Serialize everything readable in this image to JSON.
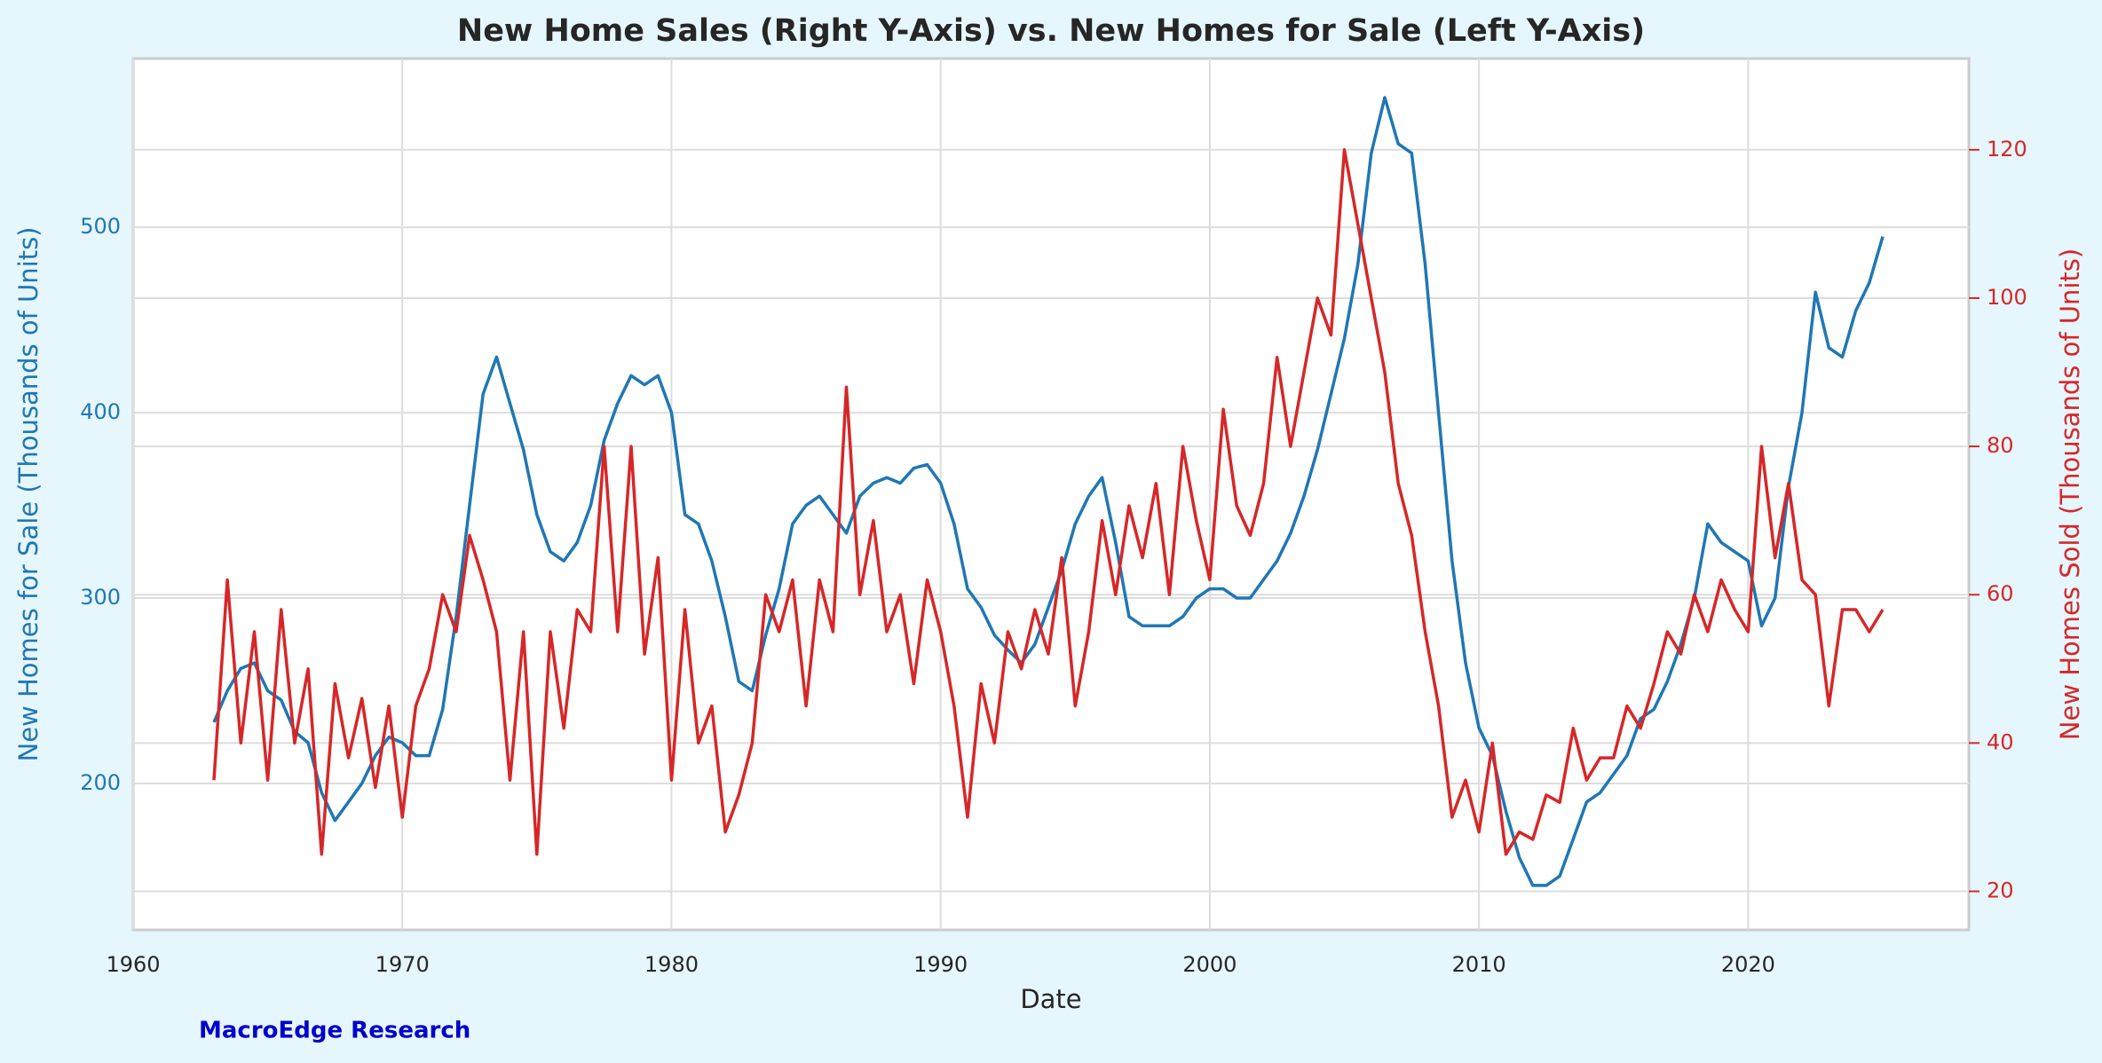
{
  "chart_data": {
    "type": "line",
    "title": "New Home Sales (Right Y-Axis) vs. New Homes for Sale (Left Y-Axis)",
    "xlabel": "Date",
    "ylabel": "New Homes for Sale (Thousands of Units)",
    "y2label": "New Homes Sold (Thousands of Units)",
    "annotation": "MacroEdge Research",
    "grid": true,
    "xlim": [
      1960,
      2028.2
    ],
    "xticks": [
      1960,
      1970,
      1980,
      1990,
      2000,
      2010,
      2020
    ],
    "ylim": [
      121,
      591
    ],
    "yticks": [
      200,
      300,
      400,
      500
    ],
    "y2lim": [
      14.8,
      132.3
    ],
    "y2ticks": [
      20,
      40,
      60,
      80,
      100,
      120
    ],
    "x": [
      1963,
      1963.5,
      1964,
      1964.5,
      1965,
      1965.5,
      1966,
      1966.5,
      1967,
      1967.5,
      1968,
      1968.5,
      1969,
      1969.5,
      1970,
      1970.5,
      1971,
      1971.5,
      1972,
      1972.5,
      1973,
      1973.5,
      1974,
      1974.5,
      1975,
      1975.5,
      1976,
      1976.5,
      1977,
      1977.5,
      1978,
      1978.5,
      1979,
      1979.5,
      1980,
      1980.5,
      1981,
      1981.5,
      1982,
      1982.5,
      1983,
      1983.5,
      1984,
      1984.5,
      1985,
      1985.5,
      1986,
      1986.5,
      1987,
      1987.5,
      1988,
      1988.5,
      1989,
      1989.5,
      1990,
      1990.5,
      1991,
      1991.5,
      1992,
      1992.5,
      1993,
      1993.5,
      1994,
      1994.5,
      1995,
      1995.5,
      1996,
      1996.5,
      1997,
      1997.5,
      1998,
      1998.5,
      1999,
      1999.5,
      2000,
      2000.5,
      2001,
      2001.5,
      2002,
      2002.5,
      2003,
      2003.5,
      2004,
      2004.5,
      2005,
      2005.5,
      2006,
      2006.5,
      2007,
      2007.5,
      2008,
      2008.5,
      2009,
      2009.5,
      2010,
      2010.5,
      2011,
      2011.5,
      2012,
      2012.5,
      2013,
      2013.5,
      2014,
      2014.5,
      2015,
      2015.5,
      2016,
      2016.5,
      2017,
      2017.5,
      2018,
      2018.5,
      2019,
      2019.5,
      2020,
      2020.5,
      2021,
      2021.5,
      2022,
      2022.5,
      2023,
      2023.5,
      2024,
      2024.5,
      2025
    ],
    "series": [
      {
        "name": "New Homes for Sale",
        "color": "#1f77b4",
        "axis": "y",
        "values": [
          233,
          250,
          262,
          265,
          250,
          245,
          228,
          222,
          195,
          180,
          190,
          200,
          215,
          225,
          222,
          215,
          215,
          240,
          290,
          350,
          410,
          430,
          405,
          380,
          345,
          325,
          320,
          330,
          350,
          385,
          405,
          420,
          415,
          420,
          400,
          345,
          340,
          320,
          290,
          255,
          250,
          280,
          305,
          340,
          350,
          355,
          345,
          335,
          355,
          362,
          365,
          362,
          370,
          372,
          362,
          340,
          305,
          295,
          280,
          272,
          265,
          275,
          295,
          315,
          340,
          355,
          365,
          330,
          290,
          285,
          285,
          285,
          290,
          300,
          305,
          305,
          300,
          300,
          310,
          320,
          335,
          355,
          380,
          410,
          440,
          480,
          540,
          570,
          545,
          540,
          480,
          400,
          320,
          265,
          230,
          215,
          185,
          160,
          145,
          145,
          150,
          170,
          190,
          195,
          205,
          215,
          235,
          240,
          255,
          275,
          300,
          340,
          330,
          325,
          320,
          285,
          300,
          360,
          400,
          465,
          435,
          430,
          455,
          470,
          495
        ]
      },
      {
        "name": "New Homes Sold",
        "color": "#d62728",
        "axis": "y2",
        "values": [
          35,
          62,
          40,
          55,
          35,
          58,
          40,
          50,
          25,
          48,
          38,
          46,
          34,
          45,
          30,
          45,
          50,
          60,
          55,
          68,
          62,
          55,
          35,
          55,
          25,
          55,
          42,
          58,
          55,
          80,
          55,
          80,
          52,
          65,
          35,
          58,
          40,
          45,
          28,
          33,
          40,
          60,
          55,
          62,
          45,
          62,
          55,
          88,
          60,
          70,
          55,
          60,
          48,
          62,
          55,
          45,
          30,
          48,
          40,
          55,
          50,
          58,
          52,
          65,
          45,
          55,
          70,
          60,
          72,
          65,
          75,
          60,
          80,
          70,
          62,
          85,
          72,
          68,
          75,
          92,
          80,
          90,
          100,
          95,
          120,
          110,
          100,
          90,
          75,
          68,
          55,
          45,
          30,
          35,
          28,
          40,
          25,
          28,
          27,
          33,
          32,
          42,
          35,
          38,
          38,
          45,
          42,
          48,
          55,
          52,
          60,
          55,
          62,
          58,
          55,
          80,
          65,
          75,
          62,
          60,
          45,
          58,
          58,
          55,
          58
        ]
      }
    ]
  }
}
